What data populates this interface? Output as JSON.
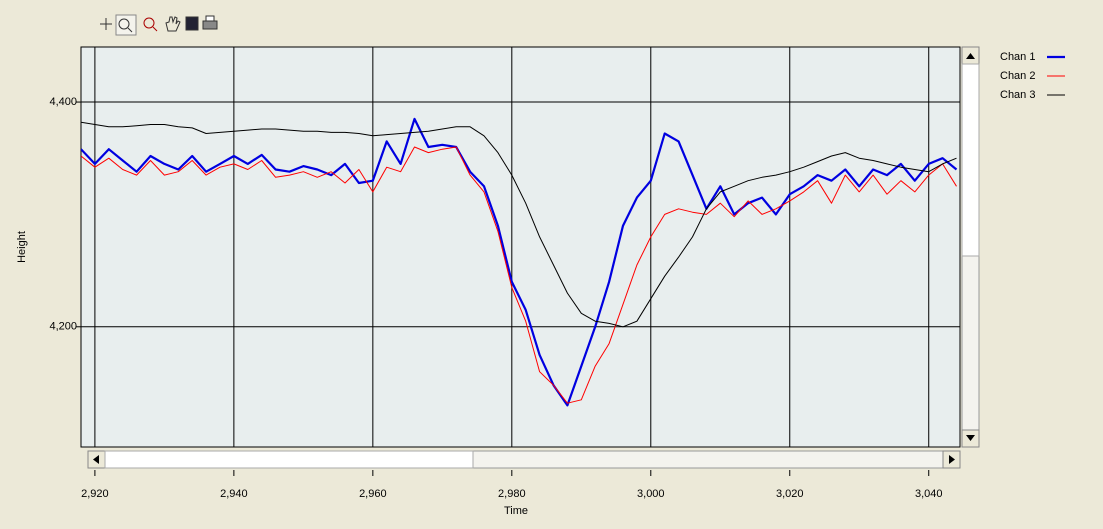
{
  "chart_data": {
    "type": "line",
    "xlabel": "Time",
    "ylabel": "Height",
    "x": [
      2918,
      2920,
      2922,
      2924,
      2926,
      2928,
      2930,
      2932,
      2934,
      2936,
      2938,
      2940,
      2942,
      2944,
      2946,
      2948,
      2950,
      2952,
      2954,
      2956,
      2958,
      2960,
      2962,
      2964,
      2966,
      2968,
      2970,
      2972,
      2974,
      2976,
      2978,
      2980,
      2982,
      2984,
      2986,
      2988,
      2990,
      2992,
      2994,
      2996,
      2998,
      3000,
      3002,
      3004,
      3006,
      3008,
      3010,
      3012,
      3014,
      3016,
      3018,
      3020,
      3022,
      3024,
      3026,
      3028,
      3030,
      3032,
      3034,
      3036,
      3038,
      3040,
      3042,
      3044
    ],
    "series": [
      {
        "name": "Chan 1",
        "color": "#0000e0",
        "width": 2.2,
        "values": [
          4358,
          4345,
          4358,
          4348,
          4338,
          4352,
          4345,
          4340,
          4352,
          4338,
          4345,
          4352,
          4345,
          4353,
          4340,
          4338,
          4343,
          4340,
          4335,
          4345,
          4328,
          4330,
          4365,
          4345,
          4385,
          4360,
          4362,
          4360,
          4338,
          4325,
          4290,
          4240,
          4215,
          4175,
          4148,
          4130,
          4165,
          4200,
          4240,
          4290,
          4315,
          4330,
          4372,
          4365,
          4335,
          4305,
          4325,
          4300,
          4310,
          4315,
          4300,
          4318,
          4325,
          4335,
          4330,
          4340,
          4325,
          4340,
          4335,
          4345,
          4330,
          4345,
          4350,
          4340
        ]
      },
      {
        "name": "Chan 2",
        "color": "#ff0000",
        "width": 1,
        "values": [
          4352,
          4342,
          4350,
          4340,
          4335,
          4348,
          4335,
          4338,
          4348,
          4335,
          4342,
          4345,
          4340,
          4348,
          4333,
          4335,
          4338,
          4333,
          4338,
          4328,
          4340,
          4320,
          4342,
          4338,
          4360,
          4355,
          4358,
          4360,
          4335,
          4320,
          4285,
          4235,
          4205,
          4160,
          4148,
          4132,
          4135,
          4165,
          4185,
          4220,
          4255,
          4280,
          4300,
          4305,
          4302,
          4300,
          4310,
          4298,
          4312,
          4300,
          4305,
          4312,
          4320,
          4330,
          4310,
          4335,
          4320,
          4335,
          4318,
          4330,
          4320,
          4335,
          4345,
          4325
        ]
      },
      {
        "name": "Chan 3",
        "color": "#000000",
        "width": 1,
        "values": [
          4382,
          4380,
          4378,
          4378,
          4379,
          4380,
          4380,
          4378,
          4377,
          4372,
          4373,
          4374,
          4375,
          4376,
          4376,
          4375,
          4374,
          4374,
          4373,
          4373,
          4372,
          4370,
          4371,
          4372,
          4373,
          4374,
          4376,
          4378,
          4378,
          4370,
          4355,
          4335,
          4310,
          4280,
          4255,
          4230,
          4212,
          4205,
          4203,
          4200,
          4205,
          4225,
          4245,
          4262,
          4280,
          4305,
          4320,
          4325,
          4330,
          4333,
          4335,
          4338,
          4342,
          4347,
          4352,
          4355,
          4350,
          4348,
          4345,
          4342,
          4340,
          4338,
          4345,
          4350
        ]
      }
    ],
    "xlim": [
      2918,
      3044.5
    ],
    "ylim": [
      4093,
      4449
    ],
    "xticks": [
      {
        "value": 2920,
        "label": "2,920"
      },
      {
        "value": 2940,
        "label": "2,940"
      },
      {
        "value": 2960,
        "label": "2,960"
      },
      {
        "value": 2980,
        "label": "2,980"
      },
      {
        "value": 3000,
        "label": "3,000"
      },
      {
        "value": 3020,
        "label": "3,020"
      },
      {
        "value": 3040,
        "label": "3,040"
      }
    ],
    "yticks": [
      {
        "value": 4200,
        "label": "4,200"
      },
      {
        "value": 4400,
        "label": "4,400"
      }
    ],
    "grid": true,
    "legend": "right"
  }
}
